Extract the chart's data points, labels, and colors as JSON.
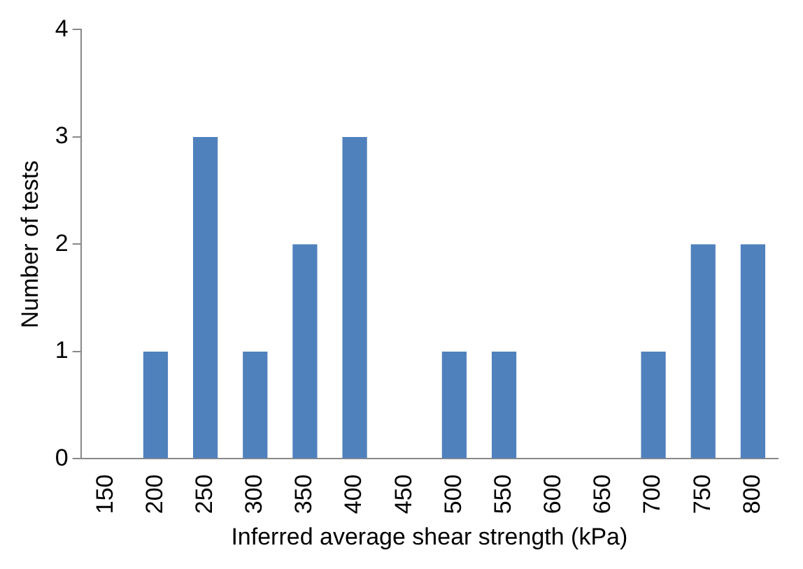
{
  "chart_data": {
    "type": "bar",
    "xlabel": "Inferred average shear strength (kPa)",
    "ylabel": "Number of tests",
    "categories": [
      "150",
      "200",
      "250",
      "300",
      "350",
      "400",
      "450",
      "500",
      "550",
      "600",
      "650",
      "700",
      "750",
      "800"
    ],
    "values": [
      0,
      1,
      3,
      1,
      2,
      3,
      0,
      1,
      1,
      0,
      0,
      1,
      2,
      2
    ],
    "color": "#4f81bd",
    "ylim": [
      0,
      4
    ],
    "yticks": [
      0,
      1,
      2,
      3,
      4
    ],
    "grid": false,
    "legend": false
  }
}
